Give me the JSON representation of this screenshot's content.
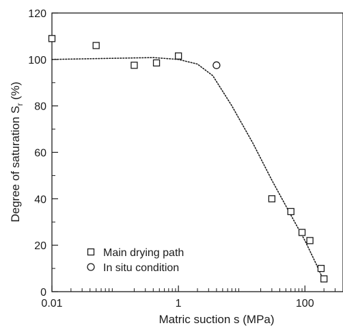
{
  "chart_data": {
    "type": "scatter",
    "xlabel": "Matric suction s (MPa)",
    "ylabel_main": "Degree of saturation S",
    "ylabel_sub": "r",
    "ylabel_suffix": " (%)",
    "x_scale": "log",
    "xlim": [
      0.01,
      400
    ],
    "ylim": [
      0,
      120
    ],
    "x_ticks": [
      0.01,
      1,
      100
    ],
    "x_tick_labels": [
      "0.01",
      "1",
      "100"
    ],
    "y_ticks": [
      0,
      20,
      40,
      60,
      80,
      100,
      120
    ],
    "y_tick_labels": [
      "0",
      "20",
      "40",
      "60",
      "80",
      "100",
      "120"
    ],
    "grid": false,
    "legend_position": "bottom-left",
    "series": [
      {
        "name": "Main drying path",
        "marker": "square",
        "points": [
          [
            0.01,
            109.0
          ],
          [
            0.05,
            106.0
          ],
          [
            0.2,
            97.5
          ],
          [
            0.45,
            98.5
          ],
          [
            1.0,
            101.5
          ],
          [
            30,
            40.0
          ],
          [
            60,
            34.5
          ],
          [
            90,
            25.5
          ],
          [
            120,
            22.0
          ],
          [
            180,
            10.0
          ],
          [
            200,
            5.5
          ]
        ]
      },
      {
        "name": "In situ condition",
        "marker": "circle",
        "points": [
          [
            4.0,
            97.5
          ]
        ]
      }
    ],
    "fit_line": {
      "style": "dotted",
      "points": [
        [
          0.01,
          100.0
        ],
        [
          0.1,
          100.5
        ],
        [
          0.4,
          100.8
        ],
        [
          1.0,
          100.0
        ],
        [
          2.0,
          98.0
        ],
        [
          3.5,
          93.0
        ],
        [
          7.0,
          80.0
        ],
        [
          15.0,
          64.0
        ],
        [
          30.0,
          48.0
        ],
        [
          60.0,
          33.0
        ],
        [
          100.0,
          22.0
        ],
        [
          150.0,
          12.0
        ],
        [
          200.0,
          4.5
        ]
      ]
    }
  }
}
